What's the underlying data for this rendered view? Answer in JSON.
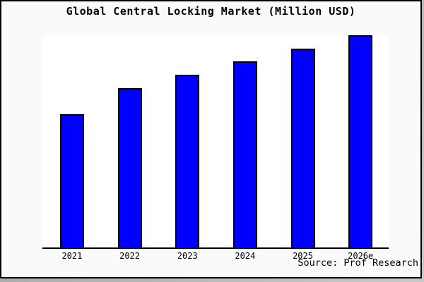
{
  "chart_data": {
    "type": "bar",
    "title": "Global Central Locking Market (Million USD)",
    "categories": [
      "2021",
      "2022",
      "2023",
      "2024",
      "2025",
      "2026e"
    ],
    "values": [
      189,
      226,
      245,
      264,
      282,
      301
    ],
    "values_unit": "relative-height-no-y-axis-scale-shown",
    "xlabel": "",
    "ylabel": "",
    "ylim": [
      0,
      301
    ],
    "grid": false,
    "legend": false,
    "y_axis_labels_visible": false,
    "source_label": "Source: Prof Research"
  },
  "colors": {
    "bar_fill": "#0000ff",
    "bar_border": "#000000",
    "axis_line": "#000000",
    "plot_background": "#ffffff",
    "figure_background": "#fafafa",
    "frame_border": "#000000",
    "text": "#000000"
  }
}
